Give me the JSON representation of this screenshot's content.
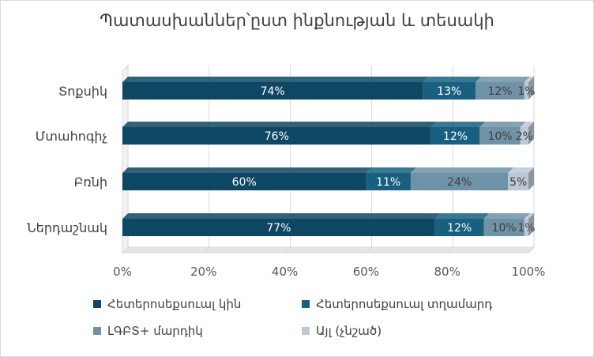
{
  "chart_data": {
    "type": "bar",
    "orientation": "horizontal",
    "stacked": "percent",
    "title": "Պատասխաններ՝ըստ ինքնության և տեսակի",
    "categories": [
      "Ներդաշնակ",
      "Բռնի",
      "Մտահոգիչ",
      "Տոքսիկ"
    ],
    "series": [
      {
        "name": "Հետերոսեքսուալ կին",
        "values": [
          77,
          60,
          76,
          74
        ],
        "labels": [
          "77%",
          "60%",
          "76%",
          "74%"
        ],
        "color": "#0e4763"
      },
      {
        "name": "Հետերոսեքսուալ տղամարդ",
        "values": [
          12,
          11,
          12,
          13
        ],
        "labels": [
          "12%",
          "11%",
          "12%",
          "13%"
        ],
        "color": "#185f80"
      },
      {
        "name": "ԼԳԲՏ+ մարդիկ",
        "values": [
          10,
          24,
          10,
          12
        ],
        "labels": [
          "10%",
          "24%",
          "10%",
          "12%"
        ],
        "color": "#6f92a7"
      },
      {
        "name": "Այլ (չնշած)",
        "values": [
          1,
          5,
          2,
          1
        ],
        "labels": [
          "1%",
          "5%",
          "2%",
          "1%"
        ],
        "color": "#bcc8d3"
      }
    ],
    "xlim": [
      0,
      100
    ],
    "x_ticks": [
      "0%",
      "20%",
      "40%",
      "60%",
      "80%",
      "100%"
    ],
    "grid": true,
    "legend_position": "bottom"
  }
}
